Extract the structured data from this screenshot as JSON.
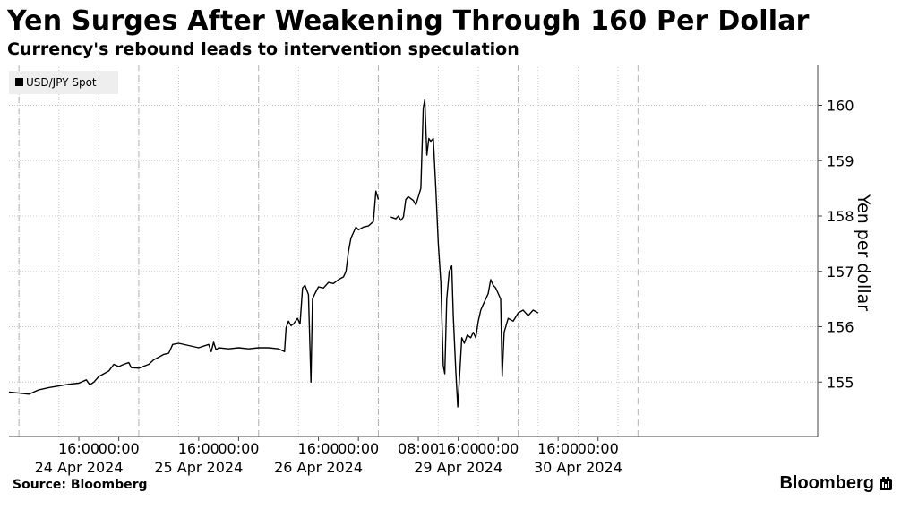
{
  "chart_data": {
    "type": "line",
    "title": "Yen Surges After Weakening Through 160 Per Dollar",
    "subtitle": "Currency's rebound leads to intervention speculation",
    "legend": {
      "label": "USD/JPY Spot",
      "position": "top-left"
    },
    "ylabel": "Yen per dollar",
    "ylim": [
      154,
      161
    ],
    "yticks": [
      155,
      156,
      157,
      158,
      159,
      160
    ],
    "x_range_hours": [
      0,
      162
    ],
    "time_labels": [
      {
        "label": "16:00",
        "hour": 14
      },
      {
        "label": "00:00",
        "hour": 22
      },
      {
        "label": "16:00",
        "hour": 38
      },
      {
        "label": "00:00",
        "hour": 46
      },
      {
        "label": "16:00",
        "hour": 62
      },
      {
        "label": "00:00",
        "hour": 70
      },
      {
        "label": "08:00",
        "hour": 82
      },
      {
        "label": "16:00",
        "hour": 90
      },
      {
        "label": "00:00",
        "hour": 98
      },
      {
        "label": "16:00",
        "hour": 110
      },
      {
        "label": "00:00",
        "hour": 118
      }
    ],
    "date_labels": [
      {
        "label": "24 Apr 2024",
        "hour": 14
      },
      {
        "label": "25 Apr 2024",
        "hour": 38
      },
      {
        "label": "26 Apr 2024",
        "hour": 62
      },
      {
        "label": "29 Apr 2024",
        "hour": 90
      },
      {
        "label": "30 Apr 2024",
        "hour": 114
      }
    ],
    "minor_grid_hours": [
      2,
      10,
      18,
      26,
      34,
      42,
      50,
      58,
      66,
      74,
      86,
      94,
      102,
      106,
      114,
      122
    ],
    "day_boundaries": [
      2,
      26,
      50,
      74,
      102,
      126
    ],
    "series": [
      {
        "name": "USD/JPY Spot",
        "segments": [
          [
            [
              0,
              154.82
            ],
            [
              2,
              154.8
            ],
            [
              4,
              154.78
            ],
            [
              6,
              154.86
            ],
            [
              8,
              154.9
            ],
            [
              10,
              154.93
            ],
            [
              12,
              154.96
            ],
            [
              14,
              154.98
            ],
            [
              15.5,
              155.04
            ],
            [
              16.2,
              154.95
            ],
            [
              17,
              155.0
            ],
            [
              18,
              155.1
            ],
            [
              19,
              155.15
            ],
            [
              20,
              155.2
            ],
            [
              21,
              155.32
            ],
            [
              22,
              155.28
            ],
            [
              23,
              155.32
            ],
            [
              24,
              155.35
            ],
            [
              24.5,
              155.26
            ],
            [
              26,
              155.25
            ],
            [
              28,
              155.32
            ],
            [
              29,
              155.4
            ],
            [
              30,
              155.45
            ],
            [
              31,
              155.5
            ],
            [
              32,
              155.52
            ],
            [
              32.8,
              155.68
            ],
            [
              34,
              155.7
            ],
            [
              36,
              155.66
            ],
            [
              38,
              155.62
            ],
            [
              40,
              155.68
            ],
            [
              40.5,
              155.55
            ],
            [
              41,
              155.72
            ],
            [
              41.5,
              155.58
            ],
            [
              42,
              155.62
            ],
            [
              44,
              155.6
            ],
            [
              46,
              155.62
            ],
            [
              48,
              155.6
            ],
            [
              50,
              155.62
            ],
            [
              52,
              155.62
            ],
            [
              54,
              155.6
            ],
            [
              55.2,
              155.55
            ],
            [
              55.5,
              155.98
            ],
            [
              56,
              156.1
            ],
            [
              56.5,
              156.02
            ],
            [
              57,
              156.05
            ],
            [
              57.8,
              156.15
            ],
            [
              58.3,
              156.05
            ],
            [
              58.8,
              156.7
            ],
            [
              59.3,
              156.75
            ],
            [
              60,
              156.58
            ],
            [
              60.5,
              155.0
            ],
            [
              60.8,
              156.5
            ],
            [
              61.3,
              156.6
            ],
            [
              62,
              156.72
            ],
            [
              63,
              156.7
            ],
            [
              64,
              156.8
            ],
            [
              65,
              156.78
            ],
            [
              66,
              156.85
            ],
            [
              67,
              156.9
            ],
            [
              67.5,
              157.0
            ],
            [
              68,
              157.35
            ],
            [
              68.5,
              157.6
            ],
            [
              69,
              157.7
            ],
            [
              69.5,
              157.8
            ],
            [
              70,
              157.75
            ],
            [
              71,
              157.8
            ],
            [
              72,
              157.82
            ],
            [
              73,
              157.9
            ],
            [
              73.5,
              158.45
            ],
            [
              74,
              158.3
            ]
          ],
          [
            [
              76.5,
              157.98
            ],
            [
              77.5,
              157.95
            ],
            [
              78,
              158.0
            ],
            [
              78.5,
              157.92
            ],
            [
              79,
              157.98
            ],
            [
              79.5,
              158.3
            ],
            [
              80,
              158.35
            ],
            [
              81,
              158.28
            ],
            [
              81.5,
              158.2
            ],
            [
              82,
              158.35
            ],
            [
              82.5,
              158.5
            ],
            [
              83,
              159.95
            ],
            [
              83.3,
              160.1
            ],
            [
              83.7,
              159.1
            ],
            [
              84.1,
              159.4
            ],
            [
              84.5,
              159.35
            ],
            [
              85,
              159.4
            ],
            [
              85.5,
              158.5
            ],
            [
              86,
              157.5
            ],
            [
              86.5,
              156.8
            ],
            [
              87,
              155.3
            ],
            [
              87.3,
              155.15
            ],
            [
              87.7,
              156.5
            ],
            [
              88.2,
              157.0
            ],
            [
              88.7,
              157.1
            ],
            [
              89,
              156.2
            ],
            [
              89.5,
              155.2
            ],
            [
              89.9,
              154.55
            ],
            [
              90.3,
              155.15
            ],
            [
              90.7,
              155.8
            ],
            [
              91.2,
              155.7
            ],
            [
              91.8,
              155.85
            ],
            [
              92.5,
              155.8
            ],
            [
              93,
              155.9
            ],
            [
              93.5,
              155.8
            ],
            [
              94,
              156.1
            ],
            [
              94.5,
              156.3
            ],
            [
              95,
              156.4
            ],
            [
              96,
              156.6
            ],
            [
              96.5,
              156.85
            ],
            [
              97,
              156.75
            ],
            [
              97.5,
              156.7
            ],
            [
              98,
              156.6
            ],
            [
              98.5,
              156.5
            ],
            [
              98.8,
              155.1
            ],
            [
              99.2,
              155.9
            ],
            [
              100,
              156.15
            ],
            [
              101,
              156.1
            ],
            [
              102,
              156.25
            ],
            [
              103,
              156.3
            ],
            [
              104,
              156.2
            ],
            [
              105,
              156.3
            ],
            [
              106,
              156.25
            ]
          ]
        ]
      }
    ]
  },
  "footer": {
    "source": "Source: Bloomberg",
    "brand": "Bloomberg"
  },
  "colors": {
    "line": "#000000",
    "grid": "#c8c8c8",
    "axis": "#444444",
    "legend_bg": "#eeeeee"
  }
}
